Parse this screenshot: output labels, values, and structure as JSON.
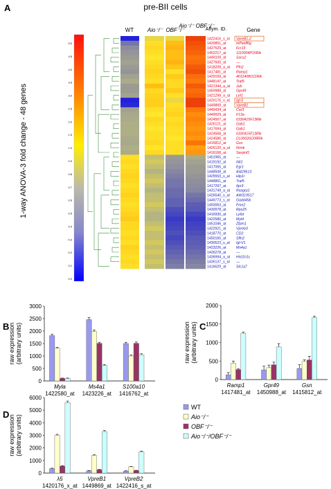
{
  "panel_letters": {
    "a": "A",
    "b": "B",
    "c": "C",
    "d": "D"
  },
  "panel_a": {
    "title": "pre-BII cells",
    "side_label": "1-way ANOVA-3 fold change - 48 genes",
    "columns": [
      "WT",
      "Aio⁻/⁻",
      "OBF⁻/⁻",
      "Aio⁻/⁻ OBF⁻/⁻",
      "Affym. ID.",
      "Gene"
    ],
    "scale_ticks": [
      "5.0",
      "4.5",
      "4.0",
      "3.5",
      "3.0",
      "2.5",
      "2.0",
      "1.5",
      "1.0",
      "0.9",
      "0.8",
      "0.7",
      "0.6",
      "0.5",
      "0.4",
      "0.3",
      "0.2",
      "0.1",
      "0.0"
    ],
    "rows": [
      {
        "id": "1422416_s_at",
        "gene": "VpreB1-2",
        "up": true,
        "boxed": true,
        "v": [
          0.05,
          0.55,
          0.55,
          0.95
        ]
      },
      {
        "id": "1420851_at",
        "gene": "mPanlf6g",
        "up": true,
        "v": [
          0.3,
          0.6,
          0.7,
          0.92
        ]
      },
      {
        "id": "1427529_at",
        "gene": "Fcr19",
        "up": true,
        "v": [
          0.35,
          0.62,
          0.72,
          0.9
        ]
      },
      {
        "id": "1452217_at",
        "gene": "1110004P15Rik",
        "up": true,
        "v": [
          0.38,
          0.6,
          0.7,
          0.88
        ]
      },
      {
        "id": "1449109_at",
        "gene": "Socs2",
        "up": true,
        "v": [
          0.4,
          0.58,
          0.7,
          0.85
        ]
      },
      {
        "id": "1427600_at",
        "gene": "---",
        "up": true,
        "v": [
          0.42,
          0.6,
          0.72,
          0.86
        ]
      },
      {
        "id": "1418208_a_at",
        "gene": "Pfn2",
        "up": true,
        "v": [
          0.4,
          0.62,
          0.68,
          0.9
        ]
      },
      {
        "id": "1417481_at",
        "gene": "Ramp1",
        "up": true,
        "v": [
          0.38,
          0.64,
          0.6,
          0.92
        ]
      },
      {
        "id": "1429159_at",
        "gene": "4631408O11Rik",
        "up": true,
        "v": [
          0.42,
          0.62,
          0.66,
          0.86
        ]
      },
      {
        "id": "1448147_at",
        "gene": "Traf5",
        "up": true,
        "v": [
          0.45,
          0.6,
          0.62,
          0.84
        ]
      },
      {
        "id": "1421344_a_at",
        "gene": "Jub",
        "up": true,
        "v": [
          0.4,
          0.7,
          0.62,
          0.9
        ]
      },
      {
        "id": "1450988_at",
        "gene": "Gpr49",
        "up": true,
        "v": [
          0.4,
          0.62,
          0.66,
          0.86
        ]
      },
      {
        "id": "1421299_a_at",
        "gene": "Lef1",
        "up": true,
        "v": [
          0.42,
          0.64,
          0.6,
          0.88
        ]
      },
      {
        "id": "1420176_x_at",
        "gene": "Igl-5",
        "up": true,
        "boxed": true,
        "v": [
          0.05,
          0.65,
          0.55,
          0.95
        ]
      },
      {
        "id": "1449869_at",
        "gene": "VpreB1",
        "up": true,
        "boxed": true,
        "v": [
          0.08,
          0.65,
          0.6,
          0.95
        ]
      },
      {
        "id": "1449434_at",
        "gene": "Car3",
        "up": true,
        "v": [
          0.42,
          0.6,
          0.62,
          0.84
        ]
      },
      {
        "id": "1449929_at",
        "gene": "F13a",
        "up": true,
        "v": [
          0.44,
          0.58,
          0.64,
          0.8
        ]
      },
      {
        "id": "1424567_at",
        "gene": "6330415F13Rik",
        "up": true,
        "v": [
          0.45,
          0.62,
          0.6,
          0.82
        ]
      },
      {
        "id": "1426121_at",
        "gene": "Gab1",
        "up": true,
        "v": [
          0.46,
          0.6,
          0.62,
          0.8
        ]
      },
      {
        "id": "1417694_at",
        "gene": "Gab1",
        "up": true,
        "v": [
          0.46,
          0.58,
          0.6,
          0.78
        ]
      },
      {
        "id": "1424568_at",
        "gene": "6330415F13Rik",
        "up": true,
        "v": [
          0.46,
          0.6,
          0.6,
          0.8
        ]
      },
      {
        "id": "1424586_at",
        "gene": "D130026O08Rik",
        "up": true,
        "v": [
          0.45,
          0.6,
          0.58,
          0.78
        ]
      },
      {
        "id": "1415812_at",
        "gene": "Gsn",
        "up": true,
        "v": [
          0.44,
          0.62,
          0.6,
          0.85
        ]
      },
      {
        "id": "1426120_a_at",
        "gene": "Nrmk",
        "up": true,
        "v": [
          0.46,
          0.58,
          0.6,
          0.76
        ]
      },
      {
        "id": "1416168_at",
        "gene": "Serpinf1",
        "up": true,
        "v": [
          0.45,
          0.62,
          0.6,
          0.78
        ]
      },
      {
        "id": "1451965_at",
        "gene": "---",
        "up": false,
        "v": [
          0.6,
          0.5,
          0.4,
          0.45
        ]
      },
      {
        "id": "1419192_at",
        "gene": "Il4i1",
        "up": false,
        "v": [
          0.62,
          0.52,
          0.38,
          0.42
        ]
      },
      {
        "id": "1417065_at",
        "gene": "Egr1",
        "up": false,
        "v": [
          0.6,
          0.5,
          0.36,
          0.4
        ]
      },
      {
        "id": "1448508_at",
        "gene": "AI429613",
        "up": false,
        "v": [
          0.62,
          0.48,
          0.34,
          0.4
        ]
      },
      {
        "id": "1425553_s_at",
        "gene": "Hip1r",
        "up": false,
        "v": [
          0.64,
          0.5,
          0.32,
          0.38
        ]
      },
      {
        "id": "1448861_at",
        "gene": "Traf5",
        "up": false,
        "v": [
          0.62,
          0.52,
          0.3,
          0.36
        ]
      },
      {
        "id": "1417297_at",
        "gene": "Itpr3",
        "up": false,
        "v": [
          0.6,
          0.5,
          0.3,
          0.35
        ]
      },
      {
        "id": "1431749_a_at",
        "gene": "Rasgrp1",
        "up": false,
        "v": [
          0.62,
          0.48,
          0.28,
          0.34
        ]
      },
      {
        "id": "1426540_s_at",
        "gene": "AW319517",
        "up": false,
        "v": [
          0.64,
          0.5,
          0.28,
          0.3
        ]
      },
      {
        "id": "1449773_s_at",
        "gene": "Gadd45b",
        "up": false,
        "v": [
          0.62,
          0.5,
          0.26,
          0.28
        ]
      },
      {
        "id": "1450063_at",
        "gene": "Fmn2",
        "up": false,
        "v": [
          0.6,
          0.52,
          0.26,
          0.25
        ]
      },
      {
        "id": "1430978_at",
        "gene": "Rps25",
        "up": false,
        "v": [
          0.62,
          0.5,
          0.22,
          0.24
        ]
      },
      {
        "id": "1416930_at",
        "gene": "Ly6d",
        "up": false,
        "v": [
          0.64,
          0.48,
          0.2,
          0.2
        ]
      },
      {
        "id": "1422580_at",
        "gene": "Myl4",
        "up": false,
        "v": [
          0.66,
          0.48,
          0.15,
          0.15
        ]
      },
      {
        "id": "1451046_at",
        "gene": "Zfpm1",
        "up": false,
        "v": [
          0.62,
          0.5,
          0.18,
          0.18
        ]
      },
      {
        "id": "1422921_at",
        "gene": "Vpreb3",
        "up": false,
        "v": [
          0.62,
          0.52,
          0.2,
          0.2
        ]
      },
      {
        "id": "1418770_at",
        "gene": "CD2",
        "up": false,
        "v": [
          0.6,
          0.5,
          0.22,
          0.22
        ]
      },
      {
        "id": "1450165_at",
        "gene": "Slfn2",
        "up": false,
        "v": [
          0.62,
          0.5,
          0.2,
          0.24
        ]
      },
      {
        "id": "1430523_s_at",
        "gene": "Igl-V1",
        "up": false,
        "v": [
          0.6,
          0.52,
          0.22,
          0.25
        ]
      },
      {
        "id": "1423226_at",
        "gene": "Ms4a1",
        "up": false,
        "v": [
          0.64,
          0.5,
          0.24,
          0.26
        ]
      },
      {
        "id": "1426278_at",
        "gene": "---",
        "up": false,
        "v": [
          0.62,
          0.52,
          0.26,
          0.28
        ]
      },
      {
        "id": "1436994_a_at",
        "gene": "Hist1h1c",
        "up": false,
        "v": [
          0.6,
          0.5,
          0.28,
          0.3
        ]
      },
      {
        "id": "1435137_s_at",
        "gene": "---",
        "up": false,
        "v": [
          0.62,
          0.52,
          0.3,
          0.32
        ]
      },
      {
        "id": "1416629_at",
        "gene": "Slc1a7",
        "up": false,
        "v": [
          0.6,
          0.5,
          0.32,
          0.34
        ]
      }
    ],
    "up_color": "#e8001c",
    "down_color": "#1a1ab5"
  },
  "legend": [
    {
      "label": "WT",
      "color": "#9999ee"
    },
    {
      "label": "Aio⁻/⁻",
      "color": "#ffffcc"
    },
    {
      "label": "OBF⁻/⁻",
      "color": "#993366"
    },
    {
      "label": "Aio⁻/⁻/OBF⁻/⁻",
      "color": "#ccffff"
    }
  ],
  "chart_data": [
    {
      "panel": "B",
      "type": "bar",
      "ylabel": "raw expression (arbitrary units)",
      "ylim": [
        0,
        3000
      ],
      "yticks": [
        0,
        500,
        1000,
        1500,
        2000,
        2500,
        3000
      ],
      "categories": [
        {
          "gene": "Myla",
          "id": "1422580_at"
        },
        {
          "gene": "Ms4a1",
          "id": "1423226_at"
        },
        {
          "gene": "S100a10",
          "id": "1416762_at"
        }
      ],
      "series": [
        {
          "name": "WT",
          "values": [
            1820,
            2460,
            1500
          ],
          "err": [
            50,
            80,
            50
          ]
        },
        {
          "name": "Aio-/-",
          "values": [
            1310,
            1980,
            1000
          ],
          "err": [
            40,
            60,
            40
          ]
        },
        {
          "name": "OBF-/-",
          "values": [
            100,
            1510,
            1510
          ],
          "err": [
            15,
            40,
            50
          ]
        },
        {
          "name": "Aio-/-/OBF-/-",
          "values": [
            100,
            620,
            1050
          ],
          "err": [
            15,
            40,
            40
          ]
        }
      ]
    },
    {
      "panel": "C",
      "type": "bar",
      "ylabel": "raw expression (arbitrary units)",
      "ylim": [
        0,
        2000
      ],
      "yticks": [
        0,
        500,
        1000,
        1500,
        2000
      ],
      "categories": [
        {
          "gene": "Ramp1",
          "id": "1417481_at"
        },
        {
          "gene": "Gpr49",
          "id": "1450988_at"
        },
        {
          "gene": "Gsn",
          "id": "1415812_at"
        }
      ],
      "series": [
        {
          "name": "WT",
          "values": [
            130,
            260,
            300
          ],
          "err": [
            60,
            100,
            100
          ]
        },
        {
          "name": "Aio-/-",
          "values": [
            440,
            320,
            490
          ],
          "err": [
            60,
            70,
            40
          ]
        },
        {
          "name": "OBF-/-",
          "values": [
            270,
            400,
            530
          ],
          "err": [
            20,
            70,
            100
          ]
        },
        {
          "name": "Aio-/-/OBF-/-",
          "values": [
            1250,
            880,
            1670
          ],
          "err": [
            30,
            90,
            40
          ]
        }
      ]
    },
    {
      "panel": "D",
      "type": "bar",
      "ylabel": "raw expression (arbitrary units)",
      "ylim": [
        0,
        6000
      ],
      "yticks": [
        0,
        1000,
        2000,
        3000,
        4000,
        5000,
        6000
      ],
      "categories": [
        {
          "gene": "λ5",
          "id": "1420176_x_at"
        },
        {
          "gene": "VpreB1",
          "id": "1449869_at"
        },
        {
          "gene": "VpreB2",
          "id": "1422416_s_at"
        }
      ],
      "series": [
        {
          "name": "WT",
          "values": [
            350,
            180,
            160
          ],
          "err": [
            40,
            20,
            20
          ]
        },
        {
          "name": "Aio-/-",
          "values": [
            3000,
            1400,
            500
          ],
          "err": [
            80,
            50,
            30
          ]
        },
        {
          "name": "OBF-/-",
          "values": [
            550,
            270,
            200
          ],
          "err": [
            40,
            20,
            20
          ]
        },
        {
          "name": "Aio-/-/OBF-/-",
          "values": [
            5600,
            3300,
            1700
          ],
          "err": [
            120,
            80,
            50
          ]
        }
      ]
    }
  ]
}
